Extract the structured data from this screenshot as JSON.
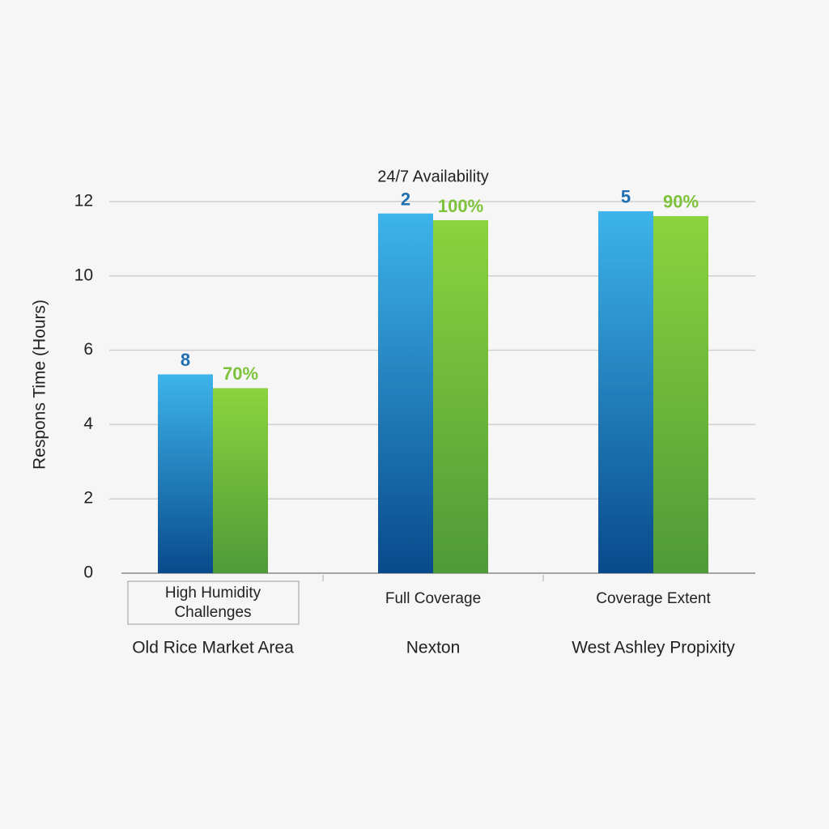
{
  "chart_data": {
    "type": "bar",
    "y_label": "Respons Time (Hours)",
    "categories": [
      "Old Rice Market Area",
      "Nexton",
      "West Ashley Propixity"
    ],
    "subcategory_labels": [
      [
        "High Humidity",
        "Challenges"
      ],
      [
        "Full Coverage"
      ],
      [
        "Coverage Extent"
      ]
    ],
    "annotations": [
      null,
      "24/7 Availability",
      null
    ],
    "series": [
      {
        "color": "#3db4ea",
        "color_bottom": "#084a8c",
        "label_color": "#1f6fb0",
        "values": [
          5.35,
          11.68,
          11.74
        ],
        "labels": [
          "8",
          "2",
          "5"
        ]
      },
      {
        "color": "#8ad43e",
        "color_bottom": "#4f9a38",
        "label_color": "#7dc23a",
        "values": [
          4.98,
          11.5,
          11.61
        ],
        "labels": [
          "70%",
          "100%",
          "90%"
        ]
      }
    ],
    "ylim": [
      0,
      12
    ],
    "yticks": [
      0,
      2,
      4,
      6,
      10,
      12
    ],
    "grid": true
  }
}
